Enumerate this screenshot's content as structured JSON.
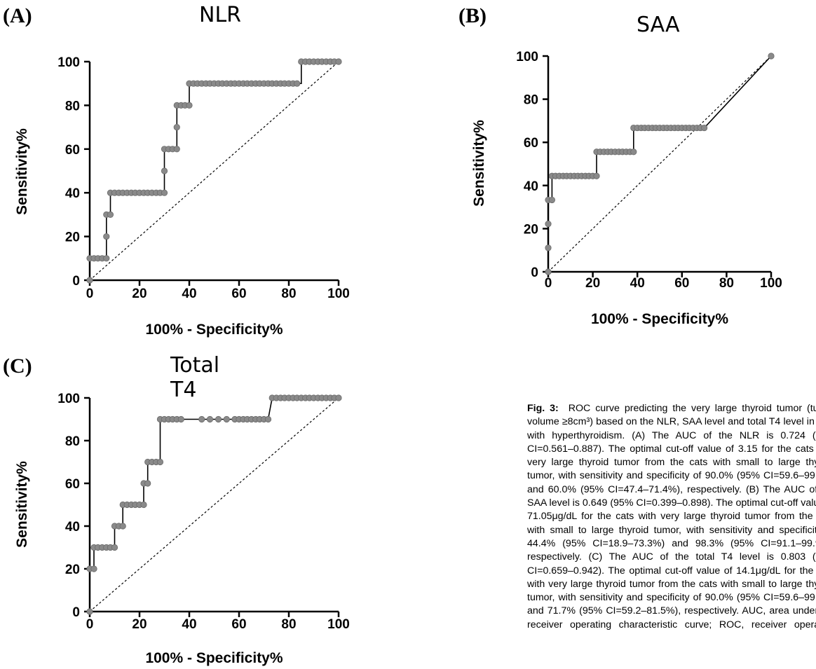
{
  "panels": [
    {
      "letter": "(A)",
      "title": "NLR",
      "xlabel": "100% - Specificity%",
      "ylabel": "Sensitivity%",
      "ticks": [
        "0",
        "20",
        "40",
        "60",
        "80",
        "100"
      ]
    },
    {
      "letter": "(B)",
      "title": "SAA",
      "xlabel": "100% - Specificity%",
      "ylabel": "Sensitivity%",
      "ticks": [
        "0",
        "20",
        "40",
        "60",
        "80",
        "100"
      ]
    },
    {
      "letter": "(C)",
      "title": "Total T4",
      "xlabel": "100% - Specificity%",
      "ylabel": "Sensitivity%",
      "ticks": [
        "0",
        "20",
        "40",
        "60",
        "80",
        "100"
      ]
    }
  ],
  "caption": {
    "label": "Fig. 3:",
    "text": "ROC curve predicting the very large thyroid tumor (tumor volume ≥8cm³) based on the NLR, SAA level and total T4 level in cats with hyperthyroidism. (A) The AUC of the NLR is 0.724 (95% CI=0.561–0.887). The optimal cut-off value of 3.15 for the cats with very large thyroid tumor from the cats with small to large thyroid tumor, with sensitivity and specificity of 90.0% (95% CI=59.6–99.5%) and 60.0% (95% CI=47.4–71.4%), respectively. (B) The AUC of the SAA level is 0.649 (95% CI=0.399–0.898). The optimal cut-off value of 71.05μg/dL for the cats with very large thyroid tumor from the cats with small to large thyroid tumor, with sensitivity and specificity of 44.4% (95% CI=18.9–73.3%) and 98.3% (95% CI=91.1–99.9%), respectively. (C) The AUC of the total T4 level is 0.803 (95% CI=0.659–0.942). The optimal cut-off value of 14.1μg/dL for the cats with very large thyroid tumor from the cats with small to large thyroid tumor, with sensitivity and specificity of 90.0% (95% CI=59.6–99.5%) and 71.7% (95% CI=59.2–81.5%), respectively. AUC, area under the receiver operating characteristic curve; ROC, receiver operating characteristic; NLR, neutrophil-to-lymphocyte ratio; SAA, serum amyloid A; CI, confidence interval."
  },
  "chart_data": [
    {
      "type": "line",
      "title": "NLR",
      "xlabel": "100% - Specificity%",
      "ylabel": "Sensitivity%",
      "xlim": [
        0,
        100
      ],
      "ylim": [
        0,
        100
      ],
      "reference_line": [
        [
          0,
          0
        ],
        [
          100,
          100
        ]
      ],
      "curve": [
        [
          0,
          0
        ],
        [
          0,
          10
        ],
        [
          6.7,
          10
        ],
        [
          6.7,
          20
        ],
        [
          6.7,
          30
        ],
        [
          8.3,
          30
        ],
        [
          8.3,
          40
        ],
        [
          30,
          40
        ],
        [
          30,
          50
        ],
        [
          30,
          60
        ],
        [
          35,
          60
        ],
        [
          35,
          70
        ],
        [
          35,
          80
        ],
        [
          40,
          80
        ],
        [
          40,
          90
        ],
        [
          83.3,
          90
        ],
        [
          85,
          90
        ],
        [
          85,
          100
        ],
        [
          100,
          100
        ]
      ],
      "markers_x_at_y": {
        "0": [
          0
        ],
        "10": [
          0,
          1.7,
          3.3,
          5,
          6.7
        ],
        "20": [
          6.7
        ],
        "30": [
          6.7,
          8.3
        ],
        "40": [
          8.3,
          10,
          11.7,
          13.3,
          15,
          16.7,
          18.3,
          20,
          21.7,
          23.3,
          25,
          26.7,
          28.3,
          30
        ],
        "50": [
          30
        ],
        "60": [
          30,
          31.7,
          33.3,
          35
        ],
        "70": [
          35
        ],
        "80": [
          35,
          36.7,
          38.3,
          40
        ],
        "90": [
          40,
          41.7,
          43.3,
          45,
          46.7,
          48.3,
          50,
          51.7,
          53.3,
          55,
          56.7,
          58.3,
          60,
          61.7,
          63.3,
          65,
          66.7,
          68.3,
          70,
          71.7,
          73.3,
          75,
          76.7,
          78.3,
          80,
          81.7,
          83.3
        ],
        "100": [
          85,
          86.7,
          88.3,
          90,
          91.7,
          93.3,
          95,
          96.7,
          98.3,
          100
        ]
      }
    },
    {
      "type": "line",
      "title": "SAA",
      "xlabel": "100% - Specificity%",
      "ylabel": "Sensitivity%",
      "xlim": [
        0,
        100
      ],
      "ylim": [
        0,
        100
      ],
      "reference_line": [
        [
          0,
          0
        ],
        [
          100,
          100
        ]
      ],
      "curve": [
        [
          0,
          0
        ],
        [
          0,
          11.1
        ],
        [
          0,
          22.2
        ],
        [
          0,
          33.3
        ],
        [
          1.7,
          33.3
        ],
        [
          1.7,
          44.4
        ],
        [
          21.7,
          44.4
        ],
        [
          21.7,
          55.6
        ],
        [
          38.3,
          55.6
        ],
        [
          38.3,
          66.7
        ],
        [
          70,
          66.7
        ],
        [
          100,
          100
        ]
      ],
      "markers_x_at_y": {
        "0": [
          0
        ],
        "11.1": [
          0
        ],
        "22.2": [
          0
        ],
        "33.3": [
          0,
          1.7
        ],
        "44.4": [
          1.7,
          3.3,
          5,
          6.7,
          8.3,
          10,
          11.7,
          13.3,
          15,
          16.7,
          18.3,
          20,
          21.7
        ],
        "55.6": [
          21.7,
          23.3,
          25,
          26.7,
          28.3,
          30,
          31.7,
          33.3,
          35,
          36.7,
          38.3
        ],
        "66.7": [
          38.3,
          40,
          41.7,
          43.3,
          45,
          46.7,
          48.3,
          50,
          51.7,
          53.3,
          55,
          56.7,
          58.3,
          60,
          61.7,
          63.3,
          65,
          66.7,
          68.3,
          70
        ],
        "100": [
          100
        ]
      }
    },
    {
      "type": "line",
      "title": "Total T4",
      "xlabel": "100% - Specificity%",
      "ylabel": "Sensitivity%",
      "xlim": [
        0,
        100
      ],
      "ylim": [
        0,
        100
      ],
      "reference_line": [
        [
          0,
          0
        ],
        [
          100,
          100
        ]
      ],
      "curve": [
        [
          0,
          0
        ],
        [
          0,
          20
        ],
        [
          1.7,
          20
        ],
        [
          1.7,
          30
        ],
        [
          10,
          30
        ],
        [
          10,
          40
        ],
        [
          13.3,
          40
        ],
        [
          13.3,
          50
        ],
        [
          21.7,
          50
        ],
        [
          21.7,
          60
        ],
        [
          23.3,
          60
        ],
        [
          23.3,
          70
        ],
        [
          28.3,
          70
        ],
        [
          28.3,
          90
        ],
        [
          71.7,
          90
        ],
        [
          73.3,
          100
        ],
        [
          100,
          100
        ]
      ],
      "markers_x_at_y": {
        "0": [
          0
        ],
        "20": [
          0,
          1.7
        ],
        "30": [
          1.7,
          3.3,
          5,
          6.7,
          8.3,
          10
        ],
        "40": [
          10,
          11.7,
          13.3
        ],
        "50": [
          13.3,
          15,
          16.7,
          18.3,
          20,
          21.7
        ],
        "60": [
          21.7,
          23.3
        ],
        "70": [
          23.3,
          25,
          26.7,
          28.3
        ],
        "90": [
          28.3,
          30,
          31.7,
          33.3,
          35,
          36.7,
          45,
          48.3,
          51.7,
          55,
          58.3,
          60,
          61.7,
          63.3,
          65,
          66.7,
          68.3,
          70,
          71.7
        ],
        "100": [
          73.3,
          75,
          76.7,
          78.3,
          80,
          81.7,
          83.3,
          85,
          86.7,
          88.3,
          90,
          91.7,
          93.3,
          95,
          96.7,
          98.3,
          100
        ]
      }
    }
  ]
}
